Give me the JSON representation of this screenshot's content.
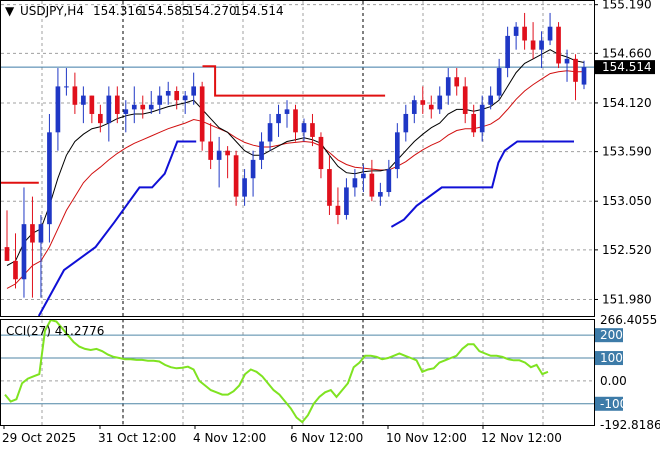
{
  "chart_data": [
    {
      "type": "candlestick",
      "header": {
        "symbol_tf": "USDJPY,H4",
        "open": "154.316",
        "high": "154.585",
        "low": "154.270",
        "close": "154.514"
      },
      "ylim": [
        151.8,
        155.23
      ],
      "y_ticks": [
        "155.190",
        "154.660",
        "154.120",
        "153.590",
        "153.050",
        "152.520",
        "151.980"
      ],
      "price_tag": "154.514",
      "x_ticks": [
        "29 Oct 2025",
        "31 Oct 12:00",
        "4 Nov 12:00",
        "6 Nov 12:00",
        "10 Nov 12:00",
        "12 Nov 12:00"
      ],
      "candles": [
        [
          152.55,
          152.95,
          152.4,
          152.4
        ],
        [
          152.4,
          152.7,
          152.1,
          152.2
        ],
        [
          152.2,
          153.2,
          152.0,
          152.8
        ],
        [
          152.8,
          153.1,
          152.0,
          152.6
        ],
        [
          152.6,
          152.9,
          152.0,
          152.8
        ],
        [
          152.8,
          154.0,
          152.6,
          153.8
        ],
        [
          153.8,
          154.5,
          153.6,
          154.3
        ],
        [
          154.3,
          154.5,
          154.2,
          154.3
        ],
        [
          154.3,
          154.45,
          154.0,
          154.1
        ],
        [
          154.1,
          154.3,
          153.9,
          154.2
        ],
        [
          154.2,
          154.2,
          153.9,
          154.0
        ],
        [
          154.0,
          154.1,
          153.8,
          153.9
        ],
        [
          153.9,
          154.3,
          153.7,
          154.2
        ],
        [
          154.2,
          154.3,
          153.9,
          154.0
        ],
        [
          154.0,
          154.15,
          153.8,
          154.05
        ],
        [
          154.05,
          154.3,
          153.9,
          154.1
        ],
        [
          154.1,
          154.2,
          153.95,
          154.05
        ],
        [
          154.05,
          154.25,
          154.0,
          154.1
        ],
        [
          154.1,
          154.3,
          154.0,
          154.2
        ],
        [
          154.2,
          154.35,
          154.1,
          154.25
        ],
        [
          154.25,
          154.3,
          154.05,
          154.15
        ],
        [
          154.15,
          154.25,
          154.0,
          154.2
        ],
        [
          154.2,
          154.45,
          154.1,
          154.3
        ],
        [
          154.3,
          154.35,
          153.6,
          153.7
        ],
        [
          153.7,
          153.9,
          153.4,
          153.5
        ],
        [
          153.5,
          153.75,
          153.2,
          153.6
        ],
        [
          153.6,
          153.65,
          153.3,
          153.55
        ],
        [
          153.55,
          153.6,
          153.0,
          153.1
        ],
        [
          153.1,
          153.4,
          153.0,
          153.3
        ],
        [
          153.3,
          153.6,
          153.1,
          153.5
        ],
        [
          153.5,
          153.8,
          153.4,
          153.7
        ],
        [
          153.7,
          154.0,
          153.6,
          153.9
        ],
        [
          153.9,
          154.1,
          153.75,
          154.0
        ],
        [
          154.0,
          154.15,
          153.85,
          154.05
        ],
        [
          154.05,
          154.1,
          153.7,
          153.8
        ],
        [
          153.8,
          153.95,
          153.7,
          153.9
        ],
        [
          153.9,
          154.0,
          153.65,
          153.75
        ],
        [
          153.75,
          153.8,
          153.3,
          153.4
        ],
        [
          153.4,
          153.55,
          152.9,
          153.0
        ],
        [
          153.0,
          153.2,
          152.8,
          152.9
        ],
        [
          152.9,
          153.3,
          152.85,
          153.2
        ],
        [
          153.2,
          153.4,
          153.1,
          153.3
        ],
        [
          153.3,
          153.45,
          153.15,
          153.35
        ],
        [
          153.35,
          153.5,
          153.05,
          153.1
        ],
        [
          153.1,
          153.25,
          153.0,
          153.15
        ],
        [
          153.15,
          153.5,
          153.1,
          153.4
        ],
        [
          153.4,
          153.9,
          153.3,
          153.8
        ],
        [
          153.8,
          154.1,
          153.7,
          154.0
        ],
        [
          154.0,
          154.2,
          153.9,
          154.15
        ],
        [
          154.15,
          154.3,
          154.0,
          154.1
        ],
        [
          154.1,
          154.2,
          153.95,
          154.05
        ],
        [
          154.05,
          154.3,
          154.0,
          154.2
        ],
        [
          154.2,
          154.5,
          154.1,
          154.4
        ],
        [
          154.4,
          154.5,
          154.2,
          154.3
        ],
        [
          154.3,
          154.4,
          153.9,
          154.0
        ],
        [
          154.0,
          154.1,
          153.75,
          153.8
        ],
        [
          153.8,
          154.2,
          153.7,
          154.1
        ],
        [
          154.1,
          154.3,
          154.05,
          154.2
        ],
        [
          154.2,
          154.6,
          154.15,
          154.5
        ],
        [
          154.5,
          154.95,
          154.4,
          154.85
        ],
        [
          154.85,
          155.0,
          154.7,
          154.95
        ],
        [
          154.95,
          155.1,
          154.7,
          154.8
        ],
        [
          154.8,
          155.0,
          154.6,
          154.7
        ],
        [
          154.7,
          154.9,
          154.5,
          154.8
        ],
        [
          154.8,
          155.1,
          154.75,
          154.95
        ],
        [
          154.95,
          155.0,
          154.5,
          154.55
        ],
        [
          154.55,
          154.7,
          154.35,
          154.6
        ],
        [
          154.6,
          154.65,
          154.15,
          154.35
        ],
        [
          154.32,
          154.58,
          154.27,
          154.51
        ]
      ],
      "ema_fast": [
        152.35,
        152.4,
        152.6,
        152.7,
        152.75,
        153.0,
        153.3,
        153.55,
        153.7,
        153.78,
        153.84,
        153.86,
        153.9,
        153.95,
        153.98,
        154.0,
        154.0,
        154.02,
        154.05,
        154.08,
        154.1,
        154.12,
        154.15,
        154.05,
        153.95,
        153.85,
        153.8,
        153.7,
        153.6,
        153.55,
        153.55,
        153.6,
        153.65,
        153.7,
        153.72,
        153.74,
        153.72,
        153.68,
        153.55,
        153.43,
        153.36,
        153.35,
        153.37,
        153.38,
        153.38,
        153.4,
        153.5,
        153.6,
        153.7,
        153.78,
        153.85,
        153.9,
        154.0,
        154.05,
        154.05,
        154.03,
        154.05,
        154.08,
        154.15,
        154.3,
        154.45,
        154.55,
        154.6,
        154.65,
        154.7,
        154.65,
        154.62,
        154.58,
        154.56
      ],
      "ema_slow": [
        152.1,
        152.15,
        152.25,
        152.35,
        152.4,
        152.55,
        152.75,
        152.95,
        153.1,
        153.25,
        153.35,
        153.42,
        153.5,
        153.57,
        153.63,
        153.68,
        153.72,
        153.76,
        153.8,
        153.84,
        153.87,
        153.9,
        153.94,
        153.92,
        153.88,
        153.84,
        153.8,
        153.74,
        153.69,
        153.66,
        153.64,
        153.64,
        153.66,
        153.68,
        153.69,
        153.7,
        153.69,
        153.65,
        153.58,
        153.5,
        153.45,
        153.42,
        153.41,
        153.4,
        153.39,
        153.39,
        153.43,
        153.48,
        153.55,
        153.61,
        153.66,
        153.7,
        153.77,
        153.82,
        153.84,
        153.84,
        153.86,
        153.89,
        153.95,
        154.05,
        154.16,
        154.25,
        154.32,
        154.38,
        154.44,
        154.46,
        154.47,
        154.46,
        154.46
      ],
      "stop_red": [
        [
          0,
          153.25
        ],
        [
          6,
          153.25
        ],
        null,
        [
          32,
          154.52
        ],
        [
          34,
          154.52
        ],
        [
          34,
          154.2
        ],
        [
          61,
          154.2
        ]
      ],
      "stop_blue": [
        [
          6,
          151.8
        ],
        [
          10,
          152.3
        ],
        [
          15,
          152.55
        ],
        [
          18,
          152.82
        ],
        [
          22,
          153.2
        ],
        [
          24,
          153.2
        ],
        [
          26,
          153.35
        ],
        [
          28,
          153.7
        ],
        [
          31,
          153.7
        ],
        null,
        [
          62,
          152.77
        ],
        [
          64,
          152.85
        ],
        [
          66,
          153.0
        ],
        [
          70,
          153.2
        ],
        [
          78,
          153.2
        ],
        [
          79,
          153.47
        ],
        [
          80,
          153.6
        ],
        [
          82,
          153.7
        ],
        [
          91,
          153.7
        ]
      ],
      "stop_x_scale": 91
    },
    {
      "type": "line",
      "title": "CCI(27) 41.2776",
      "ylim": [
        -192.8186,
        266.4055
      ],
      "y_ticks": [
        "266.4055",
        "200",
        "100",
        "0.00",
        "-100",
        "-192.8186"
      ],
      "levels": [
        200,
        100,
        -100
      ],
      "values": [
        -60,
        -90,
        -80,
        -10,
        10,
        20,
        30,
        220,
        280,
        260,
        230,
        200,
        170,
        150,
        140,
        135,
        140,
        130,
        115,
        105,
        100,
        95,
        95,
        92,
        92,
        88,
        88,
        85,
        70,
        60,
        55,
        58,
        62,
        50,
        0,
        -20,
        -40,
        -50,
        -60,
        -60,
        -45,
        -20,
        30,
        50,
        40,
        20,
        -10,
        -40,
        -60,
        -90,
        -120,
        -160,
        -180,
        -150,
        -100,
        -70,
        -50,
        -40,
        -70,
        -40,
        -10,
        60,
        80,
        110,
        110,
        105,
        95,
        100,
        110,
        120,
        110,
        100,
        90,
        40,
        50,
        55,
        80,
        90,
        100,
        110,
        140,
        160,
        160,
        130,
        120,
        110,
        110,
        105,
        95,
        90,
        90,
        80,
        60,
        70,
        30,
        40
      ]
    }
  ],
  "colors": {
    "bull": "#1f37c5",
    "bear": "#e0101c",
    "ema_fast": "#000000",
    "ema_slow": "#d11010",
    "stop_red": "#e01010",
    "stop_blue": "#1010d6",
    "cci": "#7fe321",
    "grid": "#a0a0a0",
    "level_line": "#4f86a6",
    "level_label_bg": "#3d7ba8",
    "price_tag_bg": "#000000",
    "ref_line": "#3d7ba8"
  }
}
